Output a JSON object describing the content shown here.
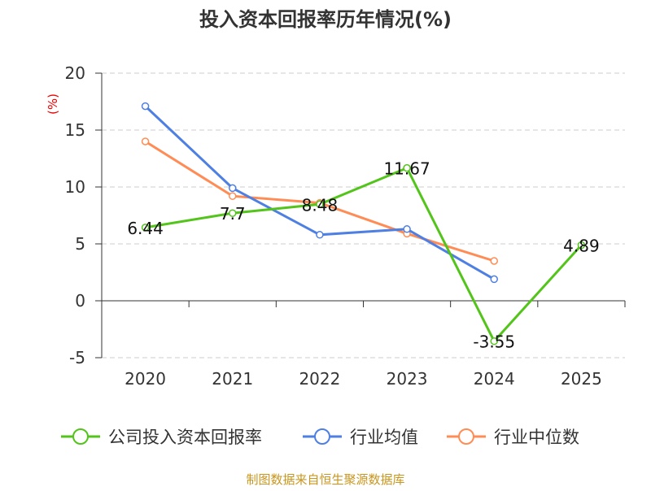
{
  "chart_data": {
    "type": "line",
    "title": "投入资本回报率历年情况(%)",
    "ylabel": "(%)",
    "categories": [
      "2020",
      "2021",
      "2022",
      "2023",
      "2024",
      "2025"
    ],
    "ylim": [
      -5,
      20
    ],
    "yticks": [
      20,
      15,
      10,
      5,
      0,
      -5
    ],
    "grid": true,
    "legend_position": "bottom",
    "series": [
      {
        "name": "公司投入资本回报率",
        "color": "#52c41a",
        "values": [
          6.44,
          7.7,
          8.48,
          11.67,
          -3.55,
          4.89
        ],
        "labels": [
          "6.44",
          "7.7",
          "8.48",
          "11.67",
          "-3.55",
          "4.89"
        ]
      },
      {
        "name": "行业均值",
        "color": "#4e7fe3",
        "values": [
          17.1,
          9.9,
          5.8,
          6.3,
          1.9,
          null
        ]
      },
      {
        "name": "行业中位数",
        "color": "#ff8c55",
        "values": [
          14.0,
          9.2,
          8.6,
          5.9,
          3.5,
          null
        ]
      }
    ]
  },
  "source": "制图数据来自恒生聚源数据库"
}
